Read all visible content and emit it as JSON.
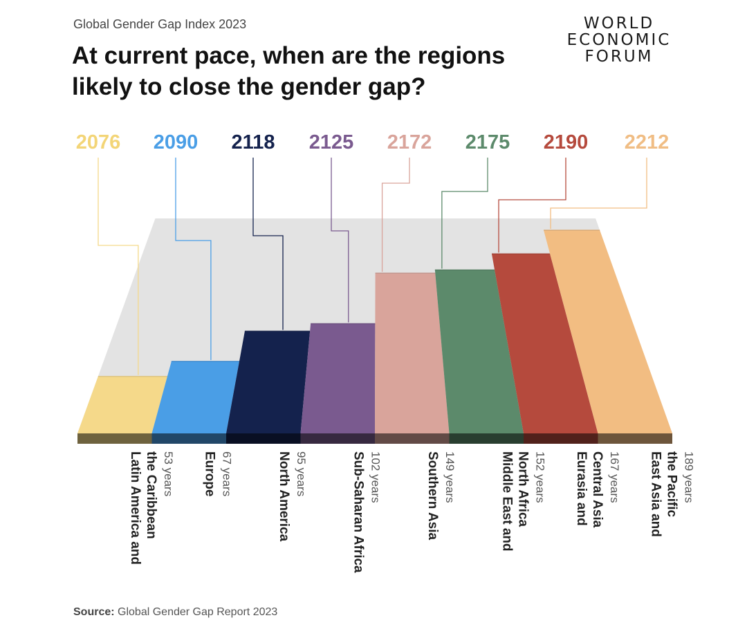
{
  "header": {
    "subtitle": "Global Gender Gap Index 2023",
    "title": "At current pace, when are the regions likely to close the gender gap?"
  },
  "logo": {
    "line1": "WORLD",
    "line2": "ECONOMIC",
    "line3": "FORUM"
  },
  "source": {
    "label": "Source:",
    "text": "Global Gender Gap Report 2023"
  },
  "chart_data": {
    "type": "bar",
    "categories": [
      [
        "Latin America and",
        "the Caribbean"
      ],
      [
        "Europe"
      ],
      [
        "North America"
      ],
      [
        "Sub-Saharan Africa"
      ],
      [
        "Southern Asia"
      ],
      [
        "Middle East and",
        "North Africa"
      ],
      [
        "Eurasia and",
        "Central Asia"
      ],
      [
        "East Asia and",
        "the Pacific"
      ]
    ],
    "years_label": "years",
    "values": [
      53,
      67,
      95,
      102,
      149,
      152,
      167,
      189
    ],
    "year_closed": [
      2076,
      2090,
      2118,
      2125,
      2172,
      2175,
      2190,
      2212
    ],
    "colors": [
      "#f5d98a",
      "#4a9ee6",
      "#14224d",
      "#7a5a8f",
      "#d9a49b",
      "#5c8a6b",
      "#b54a3d",
      "#f2bd82"
    ],
    "year_label_colors": [
      "#f3d577",
      "#4a9ee6",
      "#14224d",
      "#7a5a8f",
      "#d9a49b",
      "#5c8a6b",
      "#b54a3d",
      "#f0bd84"
    ]
  }
}
